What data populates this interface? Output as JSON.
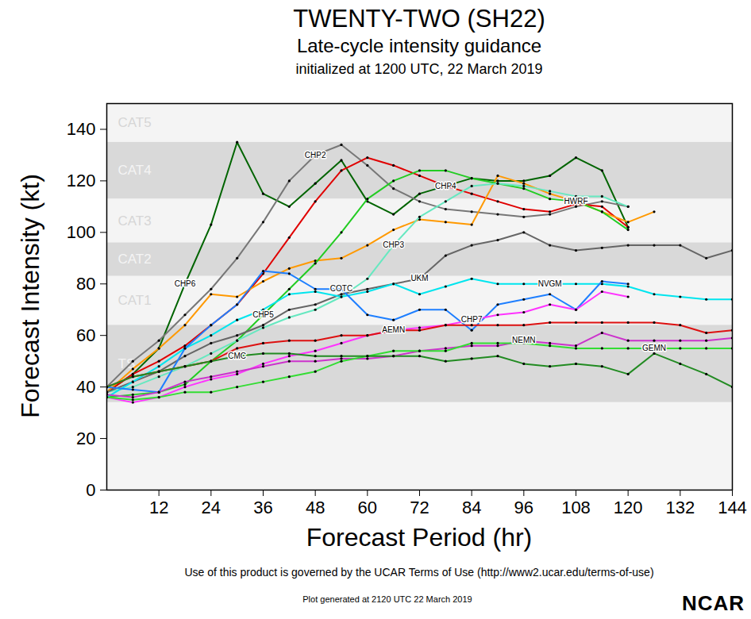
{
  "chart_data": {
    "type": "line",
    "title": "TWENTY-TWO (SH22)",
    "subtitle": "Late-cycle intensity guidance",
    "note": "initialized at 1200 UTC, 22 March 2019",
    "x_label": "Forecast Period (hr)",
    "y_label": "Forecast Intensity (kt)",
    "caption": "Use of this product is governed by the UCAR Terms of Use (http://www2.ucar.edu/terms-of-use)",
    "credit": "Plot generated at 2120 UTC  22 March 2019",
    "logo": "NCAR",
    "xlim": [
      0,
      144
    ],
    "xticks": [
      12,
      24,
      36,
      48,
      60,
      72,
      84,
      96,
      108,
      120,
      132,
      144
    ],
    "ylim": [
      0,
      150
    ],
    "yticks": [
      0,
      20,
      40,
      60,
      80,
      100,
      120,
      140
    ],
    "grid": false,
    "marker": "dot",
    "bands": [
      {
        "label": "TS",
        "from": 34,
        "to": 64,
        "color": "#d9d9d9"
      },
      {
        "label": "CAT1",
        "from": 64,
        "to": 83,
        "color": "#f4f4f4"
      },
      {
        "label": "CAT2",
        "from": 83,
        "to": 96,
        "color": "#d9d9d9"
      },
      {
        "label": "CAT3",
        "from": 96,
        "to": 113,
        "color": "#f4f4f4"
      },
      {
        "label": "CAT4",
        "from": 113,
        "to": 135,
        "color": "#d9d9d9"
      },
      {
        "label": "CAT5",
        "from": 135,
        "to": 150,
        "color": "#f4f4f4"
      }
    ],
    "x": [
      0,
      6,
      12,
      18,
      24,
      30,
      36,
      42,
      48,
      54,
      60,
      66,
      72,
      78,
      84,
      90,
      96,
      102,
      108,
      114,
      120,
      126,
      132,
      138,
      144
    ],
    "series": [
      {
        "name": "CHP6",
        "color": "#006400",
        "values": [
          38,
          45,
          55,
          80,
          103,
          135,
          115,
          110,
          119,
          128,
          112,
          107,
          115,
          118,
          121,
          120,
          120,
          122,
          129,
          124,
          102,
          null,
          null,
          null,
          null
        ]
      },
      {
        "name": "CHP2",
        "color": "#777777",
        "values": [
          40,
          50,
          58,
          68,
          78,
          90,
          104,
          120,
          130,
          134,
          126,
          117,
          112,
          109,
          108,
          107,
          106,
          107,
          110,
          112,
          110,
          null,
          null,
          null,
          null
        ]
      },
      {
        "name": "CHP4",
        "color": "#e00000",
        "values": [
          38,
          45,
          50,
          56,
          64,
          72,
          84,
          98,
          112,
          124,
          129,
          126,
          122,
          118,
          115,
          112,
          109,
          108,
          111,
          110,
          102,
          null,
          null,
          null,
          null
        ]
      },
      {
        "name": "HWRF",
        "color": "#ff9900",
        "values": [
          38,
          47,
          55,
          64,
          76,
          75,
          81,
          86,
          89,
          90,
          95,
          101,
          105,
          104,
          103,
          122,
          119,
          115,
          112,
          108,
          104,
          108,
          null,
          null,
          null
        ]
      },
      {
        "name": "CHP5",
        "color": "#22cc22",
        "values": [
          36,
          37,
          38,
          41,
          50,
          58,
          68,
          78,
          88,
          100,
          113,
          120,
          124,
          124,
          121,
          119,
          117,
          113,
          112,
          108,
          101,
          null,
          null,
          null,
          null
        ]
      },
      {
        "name": "CHP3",
        "color": "#66e8c0",
        "values": [
          38,
          40,
          44,
          48,
          53,
          58,
          63,
          67,
          70,
          75,
          82,
          95,
          106,
          112,
          118,
          119,
          118,
          116,
          114,
          114,
          110,
          null,
          null,
          null,
          null
        ]
      },
      {
        "name": "UKM",
        "color": "#666666",
        "values": [
          38,
          42,
          46,
          52,
          57,
          60,
          64,
          70,
          72,
          76,
          78,
          80,
          82,
          91,
          95,
          97,
          100,
          95,
          93,
          94,
          95,
          95,
          95,
          90,
          93
        ]
      },
      {
        "name": "NVGM",
        "color": "#00e5ee",
        "values": [
          36,
          42,
          48,
          55,
          60,
          66,
          70,
          76,
          77,
          75,
          77,
          80,
          76,
          79,
          82,
          80,
          80,
          80,
          80,
          80,
          79,
          76,
          75,
          74,
          74
        ]
      },
      {
        "name": "COTC",
        "color": "#1e7fff",
        "values": [
          40,
          39,
          38,
          55,
          64,
          72,
          85,
          84,
          78,
          78,
          68,
          66,
          70,
          70,
          62,
          72,
          74,
          76,
          70,
          81,
          80,
          null,
          null,
          null,
          null
        ]
      },
      {
        "name": "CHP7",
        "color": "#ff33ff",
        "values": [
          36,
          34,
          36,
          40,
          43,
          45,
          49,
          52,
          54,
          57,
          60,
          62,
          63,
          64,
          66,
          68,
          69,
          72,
          70,
          77,
          75,
          null,
          null,
          null,
          null
        ]
      },
      {
        "name": "AEMN",
        "color": "#dd1111",
        "values": [
          40,
          44,
          46,
          48,
          50,
          55,
          57,
          58,
          58,
          60,
          60,
          62,
          62,
          64,
          64,
          64,
          64,
          65,
          65,
          65,
          65,
          65,
          64,
          61,
          62
        ]
      },
      {
        "name": "NEMN",
        "color": "#cc33cc",
        "values": [
          37,
          36,
          38,
          42,
          44,
          46,
          48,
          50,
          50,
          51,
          51,
          52,
          54,
          55,
          56,
          56,
          58,
          57,
          56,
          61,
          58,
          58,
          58,
          58,
          59
        ]
      },
      {
        "name": "GEMN",
        "color": "#33dd33",
        "values": [
          36,
          35,
          36,
          38,
          38,
          40,
          42,
          44,
          46,
          50,
          52,
          54,
          54,
          54,
          57,
          57,
          57,
          56,
          55,
          55,
          55,
          55,
          55,
          55,
          55
        ]
      },
      {
        "name": "CMC",
        "color": "#228b22",
        "values": [
          40,
          44,
          46,
          48,
          50,
          52,
          53,
          53,
          52,
          52,
          52,
          52,
          52,
          50,
          51,
          52,
          49,
          48,
          49,
          48,
          45,
          53,
          49,
          45,
          40
        ]
      }
    ]
  }
}
